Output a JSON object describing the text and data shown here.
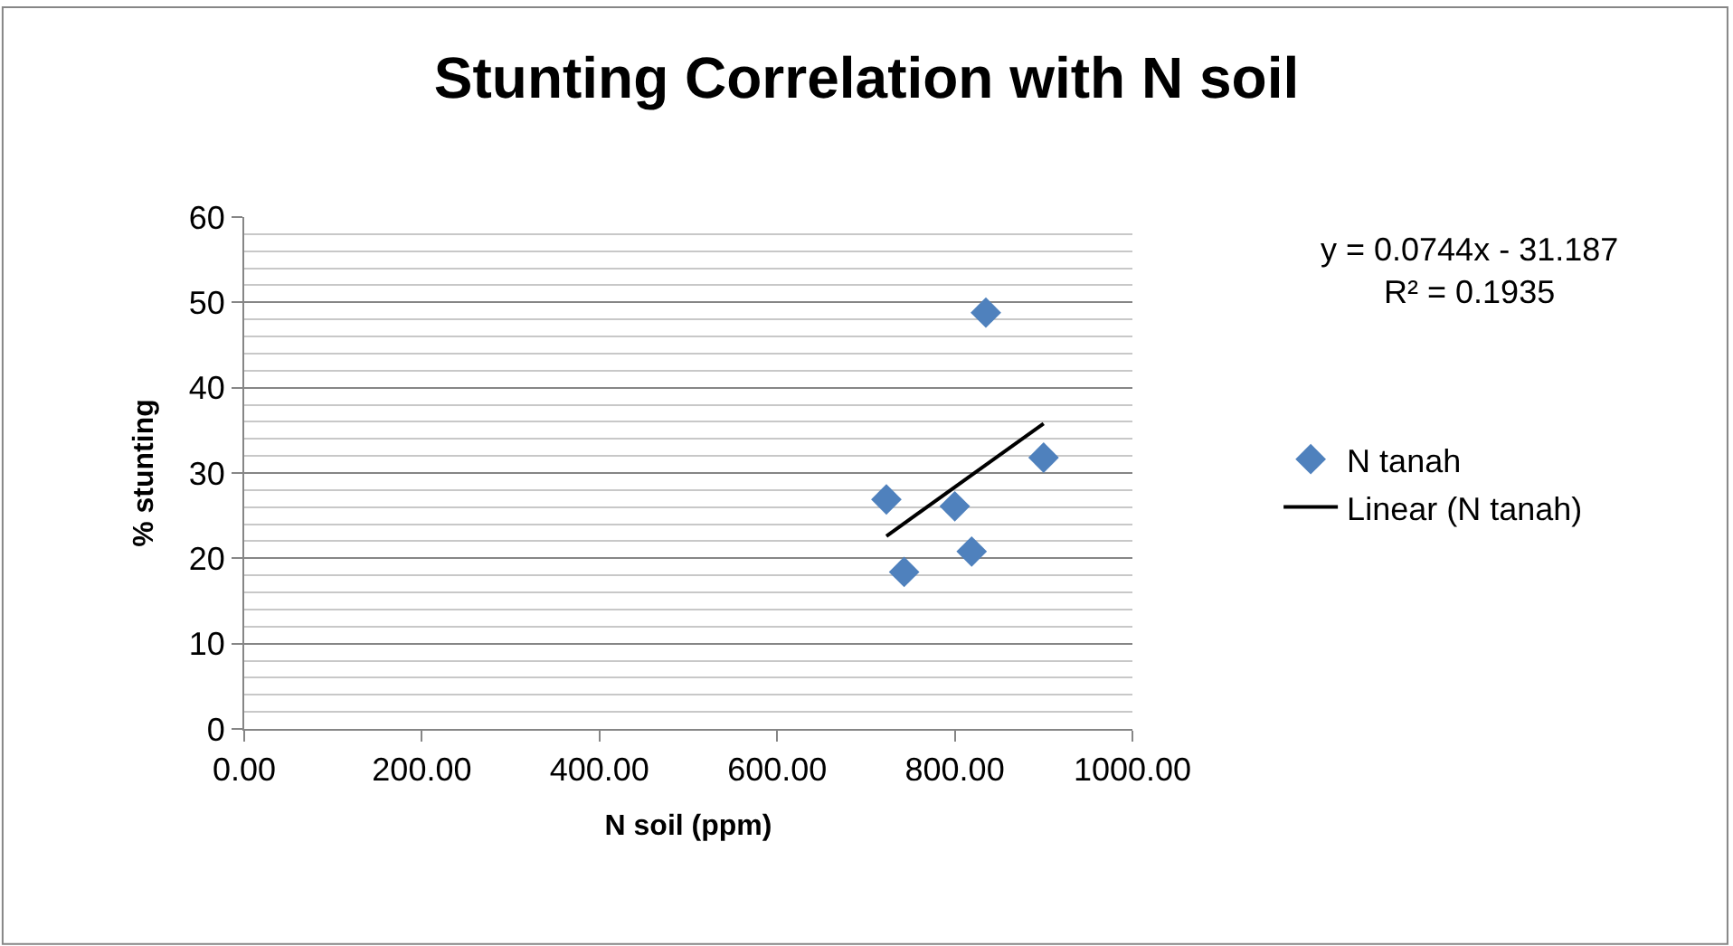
{
  "chart_data": {
    "type": "scatter",
    "title": "Stunting Correlation with N soil",
    "xlabel": "N soil (ppm)",
    "ylabel": "% stunting",
    "xlim": [
      0,
      1000
    ],
    "xticks": [
      {
        "value": 0,
        "label": "0.00"
      },
      {
        "value": 200,
        "label": "200.00"
      },
      {
        "value": 400,
        "label": "400.00"
      },
      {
        "value": 600,
        "label": "600.00"
      },
      {
        "value": 800,
        "label": "800.00"
      },
      {
        "value": 1000,
        "label": "1000.00"
      }
    ],
    "ylim": [
      0,
      60
    ],
    "yticks": [
      0,
      10,
      20,
      30,
      40,
      50,
      60
    ],
    "grid": "y",
    "legend": "right",
    "series": [
      {
        "name": "N tanah",
        "color": "#4f81bd",
        "marker": "diamond",
        "x": [
          723,
          743,
          800,
          819,
          835,
          900
        ],
        "values": [
          26.9,
          18.4,
          26.1,
          20.8,
          48.8,
          31.8
        ]
      },
      {
        "name": "Linear (N tanah)",
        "type": "line",
        "color": "#000000",
        "marker": "none",
        "x": [
          723,
          900
        ],
        "values": [
          22.6,
          35.8
        ]
      }
    ],
    "annotations": [
      "y = 0.0744x - 31.187\nR² = 0.1935"
    ]
  }
}
